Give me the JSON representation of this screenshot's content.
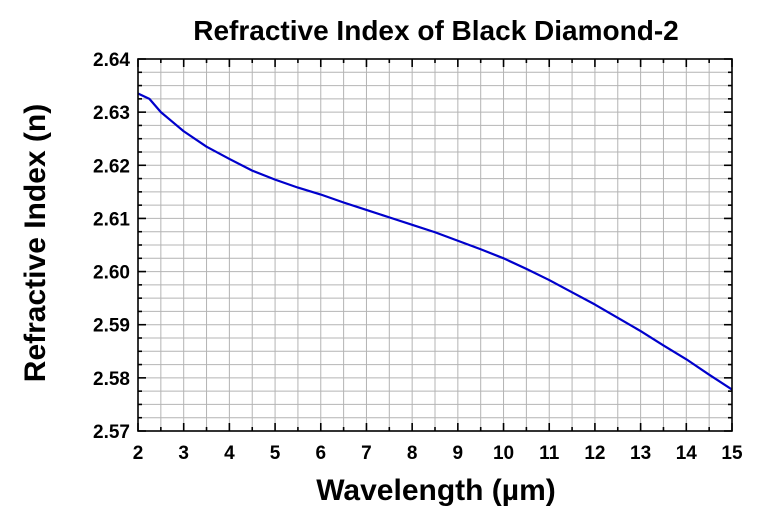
{
  "chart_data": {
    "type": "line",
    "title": "Refractive Index of Black Diamond-2",
    "xlabel": "Wavelength (µm)",
    "ylabel": "Refractive Index (n)",
    "xlim": [
      2,
      15
    ],
    "ylim": [
      2.57,
      2.64
    ],
    "xticks": [
      "2",
      "3",
      "4",
      "5",
      "6",
      "7",
      "8",
      "9",
      "10",
      "11",
      "12",
      "13",
      "14",
      "15"
    ],
    "yticks": [
      "2.57",
      "2.58",
      "2.59",
      "2.60",
      "2.61",
      "2.62",
      "2.63",
      "2.64"
    ],
    "grid": true,
    "legend": "none",
    "series": [
      {
        "color": "#0000cc",
        "x": [
          2.0,
          2.25,
          2.5,
          2.75,
          3.0,
          3.5,
          4.0,
          4.5,
          5.0,
          5.5,
          6.0,
          6.5,
          7.0,
          7.5,
          8.0,
          8.5,
          9.0,
          9.5,
          10.0,
          10.5,
          11.0,
          11.5,
          12.0,
          12.5,
          13.0,
          13.5,
          14.0,
          14.5,
          15.0
        ],
        "y": [
          2.6335,
          2.6325,
          2.63,
          2.6282,
          2.6264,
          2.6235,
          2.6212,
          2.619,
          2.6173,
          2.6158,
          2.6145,
          2.613,
          2.6116,
          2.6102,
          2.6088,
          2.6074,
          2.6058,
          2.6042,
          2.6025,
          2.6005,
          2.5984,
          2.5961,
          2.5938,
          2.5913,
          2.5888,
          2.5861,
          2.5835,
          2.5806,
          2.5778
        ]
      }
    ]
  }
}
